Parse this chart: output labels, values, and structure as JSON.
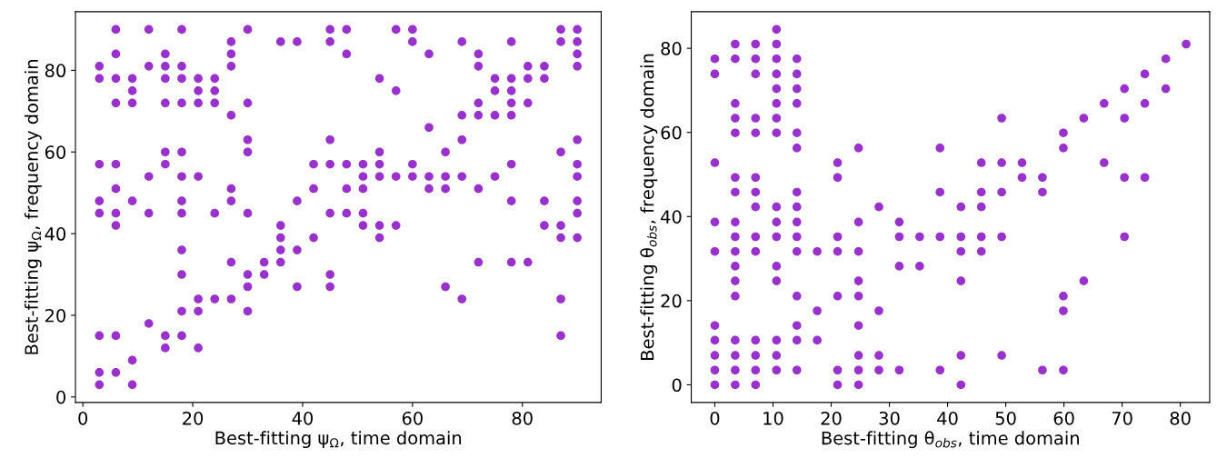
{
  "chart_data": [
    {
      "type": "scatter",
      "xlabel": "Best-fitting ψ$_{Ω}$, time domain",
      "ylabel": "Best-fitting ψ$_{Ω}$, frequency domain",
      "xlim": [
        -1.35,
        94.35
      ],
      "ylim": [
        -1.35,
        94.35
      ],
      "xticks": [
        0,
        20,
        40,
        60,
        80
      ],
      "yticks": [
        0,
        20,
        40,
        60,
        80
      ],
      "marker": "circle",
      "series": [
        {
          "color": "#9932cc",
          "x": [
            6,
            12,
            18,
            30,
            45,
            48,
            57,
            60,
            87,
            90,
            27,
            36,
            39,
            45,
            60,
            69,
            78,
            87,
            90,
            6,
            15,
            27,
            48,
            63,
            72,
            90,
            3,
            12,
            15,
            18,
            27,
            72,
            81,
            84,
            90,
            3,
            6,
            9,
            15,
            18,
            21,
            24,
            54,
            75,
            78,
            81,
            84,
            9,
            21,
            24,
            57,
            75,
            78,
            6,
            9,
            15,
            18,
            21,
            24,
            30,
            72,
            78,
            81,
            27,
            69,
            72,
            75,
            78,
            63,
            30,
            45,
            69,
            90,
            15,
            18,
            30,
            54,
            66,
            87,
            3,
            6,
            15,
            42,
            45,
            48,
            51,
            54,
            60,
            78,
            90,
            12,
            18,
            21,
            51,
            54,
            57,
            60,
            63,
            66,
            69,
            75,
            90,
            6,
            27,
            42,
            48,
            51,
            63,
            66,
            72,
            3,
            9,
            18,
            27,
            39,
            78,
            84,
            90,
            3,
            6,
            12,
            18,
            24,
            30,
            45,
            48,
            51,
            90,
            6,
            36,
            51,
            54,
            57,
            84,
            87,
            36,
            42,
            54,
            87,
            90,
            18,
            36,
            39,
            27,
            33,
            36,
            72,
            78,
            81,
            18,
            30,
            33,
            45,
            30,
            39,
            45,
            66,
            21,
            24,
            27,
            69,
            87,
            18,
            21,
            30,
            12,
            3,
            6,
            15,
            18,
            87,
            15,
            21,
            9,
            3,
            6,
            3,
            9
          ],
          "values": [
            90,
            90,
            90,
            90,
            90,
            90,
            90,
            90,
            90,
            90,
            87,
            87,
            87,
            87,
            87,
            87,
            87,
            87,
            87,
            84,
            84,
            84,
            84,
            84,
            84,
            84,
            81,
            81,
            81,
            81,
            81,
            81,
            81,
            81,
            81,
            78,
            78,
            78,
            78,
            78,
            78,
            78,
            78,
            78,
            78,
            78,
            78,
            75,
            75,
            75,
            75,
            75,
            75,
            72,
            72,
            72,
            72,
            72,
            72,
            72,
            72,
            72,
            72,
            69,
            69,
            69,
            69,
            69,
            66,
            63,
            63,
            63,
            63,
            60,
            60,
            60,
            60,
            60,
            60,
            57,
            57,
            57,
            57,
            57,
            57,
            57,
            57,
            57,
            57,
            57,
            54,
            54,
            54,
            54,
            54,
            54,
            54,
            54,
            54,
            54,
            54,
            54,
            51,
            51,
            51,
            51,
            51,
            51,
            51,
            51,
            48,
            48,
            48,
            48,
            48,
            48,
            48,
            48,
            45,
            45,
            45,
            45,
            45,
            45,
            45,
            45,
            45,
            45,
            42,
            42,
            42,
            42,
            42,
            42,
            42,
            39,
            39,
            39,
            39,
            39,
            36,
            36,
            36,
            33,
            33,
            33,
            33,
            33,
            33,
            30,
            30,
            30,
            30,
            27,
            27,
            27,
            27,
            24,
            24,
            24,
            24,
            24,
            21,
            21,
            21,
            18,
            15,
            15,
            15,
            15,
            15,
            12,
            12,
            9,
            6,
            6,
            3,
            3
          ]
        }
      ]
    },
    {
      "type": "scatter",
      "xlabel": "Best-fitting θ$_{obs}$, time domain",
      "ylabel": "Best-fitting θ$_{obs}$, frequency domain",
      "xlim": [
        -4.05,
        85.05
      ],
      "ylim": [
        -4.2,
        88.7
      ],
      "xticks": [
        0,
        10,
        20,
        30,
        40,
        50,
        60,
        70,
        80
      ],
      "yticks": [
        0,
        20,
        40,
        60,
        80
      ],
      "marker": "circle",
      "series": [
        {
          "color": "#9932cc",
          "x": [
            10.6,
            3.5,
            7.0,
            10.6,
            81.0,
            0,
            3.5,
            7.0,
            10.6,
            14.1,
            77.5,
            0,
            7.0,
            10.6,
            14.1,
            73.9,
            10.6,
            14.1,
            70.4,
            77.5,
            3.5,
            10.6,
            14.1,
            66.9,
            73.9,
            3.5,
            7.0,
            10.6,
            49.3,
            63.4,
            70.4,
            3.5,
            7.0,
            10.6,
            14.1,
            59.9,
            14.1,
            24.7,
            38.7,
            59.9,
            0,
            21.1,
            45.8,
            49.3,
            52.8,
            66.9,
            3.5,
            7.0,
            21.1,
            52.8,
            56.3,
            70.4,
            73.9,
            3.5,
            7.0,
            14.1,
            38.7,
            45.8,
            49.3,
            56.3,
            7.0,
            10.6,
            14.1,
            28.2,
            42.3,
            45.8,
            0,
            3.5,
            10.6,
            14.1,
            24.7,
            31.7,
            3.5,
            7.0,
            10.6,
            14.1,
            21.1,
            31.7,
            35.2,
            38.7,
            42.3,
            45.8,
            49.3,
            70.4,
            0,
            3.5,
            7.0,
            14.1,
            17.6,
            21.1,
            24.7,
            42.3,
            45.8,
            3.5,
            10.6,
            31.7,
            35.2,
            3.5,
            10.6,
            24.7,
            42.3,
            63.4,
            3.5,
            14.1,
            21.1,
            24.7,
            59.9,
            17.6,
            28.2,
            59.9,
            0,
            14.1,
            24.7,
            0,
            3.5,
            7.0,
            10.6,
            14.1,
            17.6,
            0,
            3.5,
            7.0,
            10.6,
            24.7,
            28.2,
            42.3,
            49.3,
            0,
            3.5,
            7.0,
            10.6,
            14.1,
            21.1,
            24.7,
            28.2,
            31.7,
            38.7,
            56.3,
            59.9,
            0,
            3.5,
            7.0,
            21.1,
            24.7,
            42.3
          ],
          "values": [
            84.5,
            81.0,
            81.0,
            81.0,
            81.0,
            77.5,
            77.5,
            77.5,
            77.5,
            77.5,
            77.5,
            73.9,
            73.9,
            73.9,
            73.9,
            73.9,
            70.4,
            70.4,
            70.4,
            70.4,
            66.9,
            66.9,
            66.9,
            66.9,
            66.9,
            63.4,
            63.4,
            63.4,
            63.4,
            63.4,
            63.4,
            59.9,
            59.9,
            59.9,
            59.9,
            59.9,
            56.3,
            56.3,
            56.3,
            56.3,
            52.8,
            52.8,
            52.8,
            52.8,
            52.8,
            52.8,
            49.3,
            49.3,
            49.3,
            49.3,
            49.3,
            49.3,
            49.3,
            45.8,
            45.8,
            45.8,
            45.8,
            45.8,
            45.8,
            45.8,
            42.3,
            42.3,
            42.3,
            42.3,
            42.3,
            42.3,
            38.7,
            38.7,
            38.7,
            38.7,
            38.7,
            38.7,
            35.2,
            35.2,
            35.2,
            35.2,
            35.2,
            35.2,
            35.2,
            35.2,
            35.2,
            35.2,
            35.2,
            35.2,
            31.7,
            31.7,
            31.7,
            31.7,
            31.7,
            31.7,
            31.7,
            31.7,
            31.7,
            28.2,
            28.2,
            28.2,
            28.2,
            24.7,
            24.7,
            24.7,
            24.7,
            24.7,
            21.1,
            21.1,
            21.1,
            21.1,
            21.1,
            17.6,
            17.6,
            17.6,
            14.1,
            14.1,
            14.1,
            10.6,
            10.6,
            10.6,
            10.6,
            10.6,
            10.6,
            7.0,
            7.0,
            7.0,
            7.0,
            7.0,
            7.0,
            7.0,
            7.0,
            3.5,
            3.5,
            3.5,
            3.5,
            3.5,
            3.5,
            3.5,
            3.5,
            3.5,
            3.5,
            3.5,
            3.5,
            0,
            0,
            0,
            0,
            0,
            0
          ]
        }
      ]
    }
  ]
}
